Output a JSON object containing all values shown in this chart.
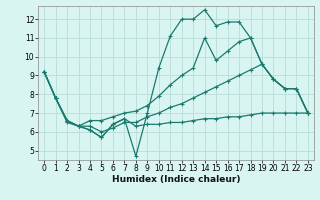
{
  "title": "",
  "xlabel": "Humidex (Indice chaleur)",
  "bg_color": "#d9f5f2",
  "line_color": "#1a7a6e",
  "grid_color": "#b8ddd9",
  "xlim": [
    -0.5,
    23.5
  ],
  "ylim": [
    4.5,
    12.7
  ],
  "xticks": [
    0,
    1,
    2,
    3,
    4,
    5,
    6,
    7,
    8,
    9,
    10,
    11,
    12,
    13,
    14,
    15,
    16,
    17,
    18,
    19,
    20,
    21,
    22,
    23
  ],
  "yticks": [
    5,
    6,
    7,
    8,
    9,
    10,
    11,
    12
  ],
  "lines": [
    {
      "x": [
        0,
        1,
        2,
        3,
        4,
        5,
        6,
        7,
        8,
        9,
        10,
        11,
        12,
        13,
        14,
        15,
        16,
        17,
        18,
        19,
        20,
        21,
        22,
        23
      ],
      "y": [
        9.2,
        7.8,
        6.6,
        6.3,
        6.1,
        5.7,
        6.4,
        6.7,
        4.7,
        7.0,
        9.4,
        11.1,
        12.0,
        12.0,
        12.5,
        11.65,
        11.85,
        11.85,
        11.0,
        9.6,
        8.8,
        8.3,
        8.3,
        7.0
      ]
    },
    {
      "x": [
        0,
        1,
        2,
        3,
        4,
        5,
        6,
        7,
        8,
        9,
        10,
        11,
        12,
        13,
        14,
        15,
        16,
        17,
        18,
        19,
        20,
        21,
        22,
        23
      ],
      "y": [
        9.2,
        7.8,
        6.6,
        6.3,
        6.6,
        6.6,
        6.8,
        7.0,
        7.1,
        7.4,
        7.9,
        8.5,
        9.0,
        9.4,
        11.0,
        9.8,
        10.3,
        10.8,
        11.0,
        9.6,
        8.8,
        8.3,
        8.3,
        7.0
      ]
    },
    {
      "x": [
        0,
        1,
        2,
        3,
        4,
        5,
        6,
        7,
        8,
        9,
        10,
        11,
        12,
        13,
        14,
        15,
        16,
        17,
        18,
        19,
        20,
        21,
        22,
        23
      ],
      "y": [
        9.2,
        7.8,
        6.6,
        6.3,
        6.3,
        6.0,
        6.2,
        6.5,
        6.5,
        6.8,
        7.0,
        7.3,
        7.5,
        7.8,
        8.1,
        8.4,
        8.7,
        9.0,
        9.3,
        9.6,
        8.8,
        8.3,
        8.3,
        7.0
      ]
    },
    {
      "x": [
        0,
        1,
        2,
        3,
        4,
        5,
        6,
        7,
        8,
        9,
        10,
        11,
        12,
        13,
        14,
        15,
        16,
        17,
        18,
        19,
        20,
        21,
        22,
        23
      ],
      "y": [
        9.2,
        7.8,
        6.5,
        6.3,
        6.1,
        5.7,
        6.4,
        6.7,
        6.3,
        6.4,
        6.4,
        6.5,
        6.5,
        6.6,
        6.7,
        6.7,
        6.8,
        6.8,
        6.9,
        7.0,
        7.0,
        7.0,
        7.0,
        7.0
      ]
    }
  ]
}
